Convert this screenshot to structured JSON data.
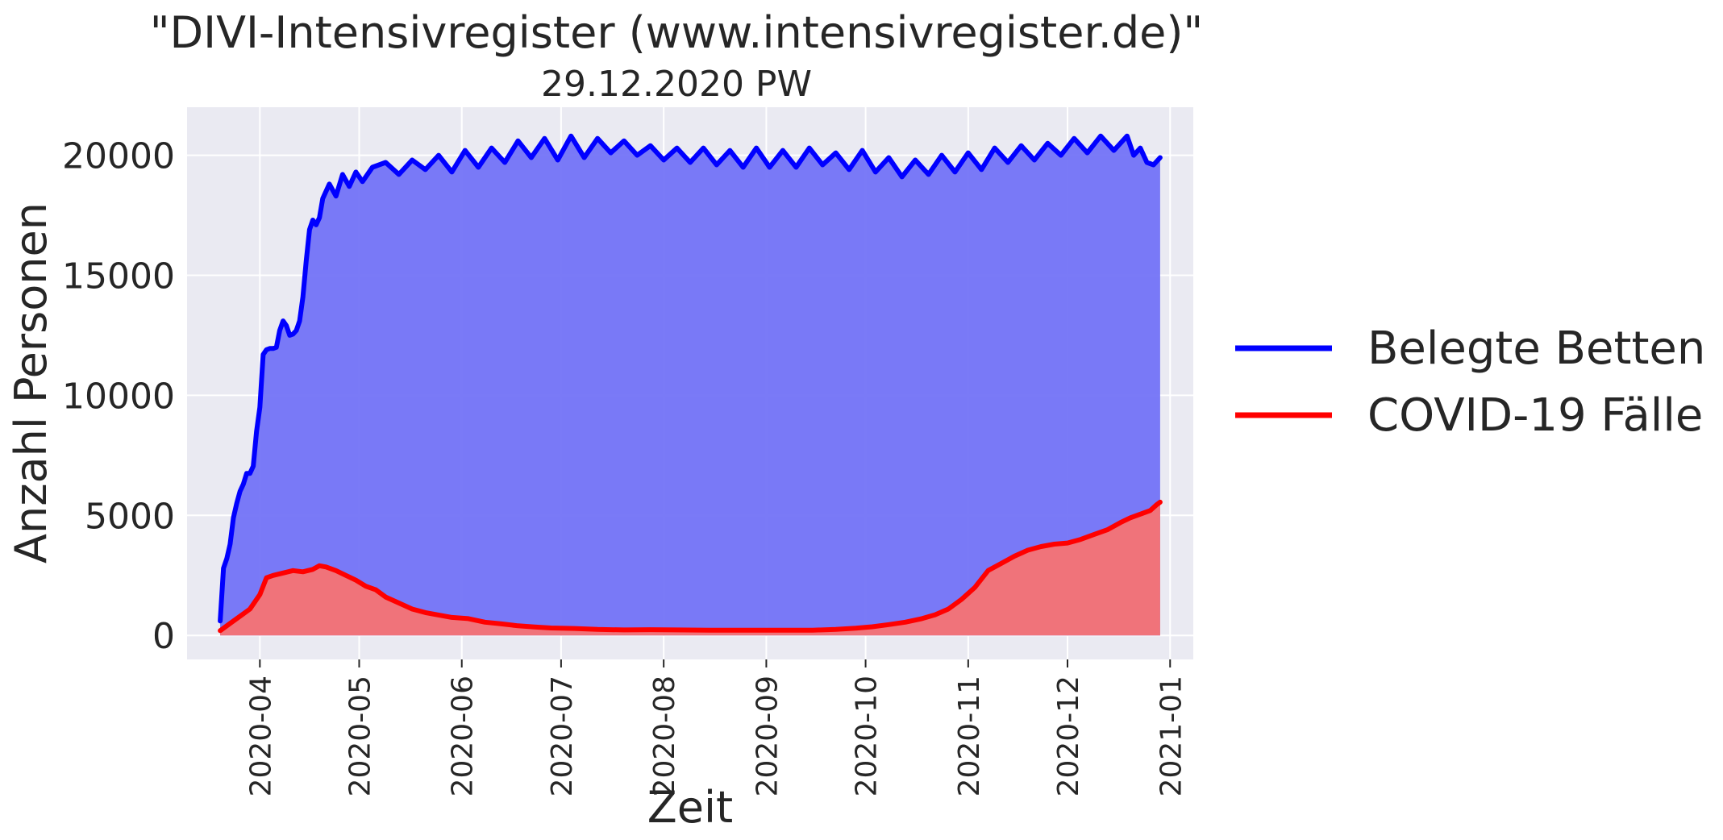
{
  "chart_data": {
    "type": "area",
    "title": "\"DIVI-Intensivregister (www.intensivregister.de)\"",
    "subtitle": "29.12.2020 PW",
    "xlabel": "Zeit",
    "ylabel": "Anzahl Personen",
    "x_range": [
      "2020-03-10",
      "2021-01-08"
    ],
    "ylim": [
      -1000,
      22000
    ],
    "x_ticks": [
      "2020-04",
      "2020-05",
      "2020-06",
      "2020-07",
      "2020-08",
      "2020-09",
      "2020-10",
      "2020-11",
      "2020-12",
      "2021-01"
    ],
    "y_ticks": [
      "0",
      "5000",
      "10000",
      "15000",
      "20000"
    ],
    "grid": true,
    "legend_position": "right",
    "colors": {
      "background": "#eaeaf2",
      "grid": "#ffffff",
      "belegt_line": "#0000ff",
      "belegt_fill": "#7373f7",
      "covid_line": "#ff0000",
      "covid_fill": "#f77373"
    },
    "series": [
      {
        "name": "Belegte Betten",
        "x": [
          "2020-03-20",
          "2020-03-21",
          "2020-03-22",
          "2020-03-23",
          "2020-03-24",
          "2020-03-25",
          "2020-03-26",
          "2020-03-27",
          "2020-03-28",
          "2020-03-29",
          "2020-03-30",
          "2020-03-31",
          "2020-04-01",
          "2020-04-02",
          "2020-04-03",
          "2020-04-04",
          "2020-04-05",
          "2020-04-06",
          "2020-04-07",
          "2020-04-08",
          "2020-04-09",
          "2020-04-10",
          "2020-04-11",
          "2020-04-12",
          "2020-04-13",
          "2020-04-14",
          "2020-04-15",
          "2020-04-16",
          "2020-04-17",
          "2020-04-18",
          "2020-04-19",
          "2020-04-20",
          "2020-04-22",
          "2020-04-24",
          "2020-04-26",
          "2020-04-28",
          "2020-04-30",
          "2020-05-02",
          "2020-05-05",
          "2020-05-09",
          "2020-05-13",
          "2020-05-17",
          "2020-05-21",
          "2020-05-25",
          "2020-05-29",
          "2020-06-02",
          "2020-06-06",
          "2020-06-10",
          "2020-06-14",
          "2020-06-18",
          "2020-06-22",
          "2020-06-26",
          "2020-06-30",
          "2020-07-04",
          "2020-07-08",
          "2020-07-12",
          "2020-07-16",
          "2020-07-20",
          "2020-07-24",
          "2020-07-28",
          "2020-08-01",
          "2020-08-05",
          "2020-08-09",
          "2020-08-13",
          "2020-08-17",
          "2020-08-21",
          "2020-08-25",
          "2020-08-29",
          "2020-09-02",
          "2020-09-06",
          "2020-09-10",
          "2020-09-14",
          "2020-09-18",
          "2020-09-22",
          "2020-09-26",
          "2020-09-30",
          "2020-10-04",
          "2020-10-08",
          "2020-10-12",
          "2020-10-16",
          "2020-10-20",
          "2020-10-24",
          "2020-10-28",
          "2020-11-01",
          "2020-11-05",
          "2020-11-09",
          "2020-11-13",
          "2020-11-17",
          "2020-11-21",
          "2020-11-25",
          "2020-11-29",
          "2020-12-03",
          "2020-12-07",
          "2020-12-11",
          "2020-12-15",
          "2020-12-19",
          "2020-12-21",
          "2020-12-23",
          "2020-12-25",
          "2020-12-27",
          "2020-12-29"
        ],
        "values": [
          600,
          2800,
          3200,
          3800,
          4900,
          5500,
          6000,
          6300,
          6750,
          6750,
          7050,
          8500,
          9500,
          11700,
          11900,
          11950,
          11950,
          12000,
          12700,
          13100,
          12900,
          12500,
          12550,
          12700,
          13100,
          14100,
          15600,
          16900,
          17300,
          17100,
          17400,
          18200,
          18800,
          18300,
          19200,
          18700,
          19300,
          18900,
          19500,
          19700,
          19200,
          19800,
          19400,
          20000,
          19300,
          20200,
          19500,
          20300,
          19700,
          20600,
          19900,
          20700,
          19800,
          20800,
          19900,
          20700,
          20100,
          20600,
          20000,
          20400,
          19800,
          20300,
          19700,
          20300,
          19600,
          20200,
          19500,
          20300,
          19500,
          20200,
          19500,
          20300,
          19600,
          20100,
          19400,
          20200,
          19300,
          19900,
          19100,
          19800,
          19200,
          20000,
          19300,
          20100,
          19400,
          20300,
          19700,
          20400,
          19800,
          20500,
          20000,
          20700,
          20100,
          20800,
          20200,
          20800,
          20000,
          20300,
          19700,
          19600,
          19900
        ]
      },
      {
        "name": "COVID-19 Fälle",
        "x": [
          "2020-03-20",
          "2020-03-23",
          "2020-03-26",
          "2020-03-29",
          "2020-04-01",
          "2020-04-03",
          "2020-04-05",
          "2020-04-08",
          "2020-04-11",
          "2020-04-14",
          "2020-04-17",
          "2020-04-19",
          "2020-04-21",
          "2020-04-24",
          "2020-04-27",
          "2020-04-30",
          "2020-05-03",
          "2020-05-06",
          "2020-05-09",
          "2020-05-13",
          "2020-05-17",
          "2020-05-21",
          "2020-05-25",
          "2020-05-29",
          "2020-06-03",
          "2020-06-08",
          "2020-06-13",
          "2020-06-18",
          "2020-06-23",
          "2020-06-28",
          "2020-07-05",
          "2020-07-12",
          "2020-07-20",
          "2020-07-28",
          "2020-08-05",
          "2020-08-15",
          "2020-08-25",
          "2020-09-05",
          "2020-09-15",
          "2020-09-22",
          "2020-09-28",
          "2020-10-03",
          "2020-10-08",
          "2020-10-13",
          "2020-10-18",
          "2020-10-22",
          "2020-10-26",
          "2020-10-30",
          "2020-11-03",
          "2020-11-07",
          "2020-11-11",
          "2020-11-15",
          "2020-11-19",
          "2020-11-23",
          "2020-11-27",
          "2020-12-01",
          "2020-12-05",
          "2020-12-09",
          "2020-12-13",
          "2020-12-17",
          "2020-12-20",
          "2020-12-23",
          "2020-12-26",
          "2020-12-28",
          "2020-12-29"
        ],
        "values": [
          200,
          500,
          800,
          1100,
          1700,
          2400,
          2500,
          2600,
          2700,
          2650,
          2750,
          2900,
          2850,
          2700,
          2500,
          2300,
          2050,
          1900,
          1600,
          1350,
          1100,
          950,
          850,
          750,
          700,
          550,
          480,
          400,
          350,
          310,
          290,
          250,
          230,
          240,
          230,
          215,
          220,
          215,
          220,
          250,
          300,
          360,
          450,
          550,
          700,
          860,
          1100,
          1500,
          2000,
          2700,
          3000,
          3300,
          3550,
          3700,
          3800,
          3850,
          4000,
          4200,
          4400,
          4700,
          4900,
          5050,
          5200,
          5450,
          5550
        ]
      }
    ]
  }
}
